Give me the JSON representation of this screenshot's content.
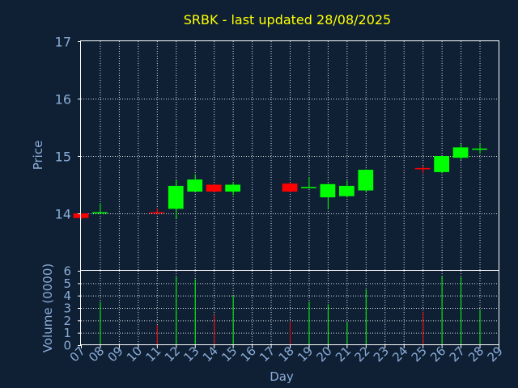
{
  "chart_data": {
    "type": "candlestick",
    "title": "SRBK - last updated 28/08/2025",
    "xlabel": "Day",
    "price_panel": {
      "ylabel": "Price",
      "ylim": [
        13.0,
        17.0
      ],
      "yticks": [
        "14",
        "15",
        "16",
        "17"
      ]
    },
    "volume_panel": {
      "ylabel": "Volume (0000)",
      "ylim": [
        0,
        6
      ],
      "yticks": [
        "0",
        "1",
        "2",
        "3",
        "4",
        "5",
        "6"
      ]
    },
    "x_tick_labels": [
      "07",
      "08",
      "09",
      "10",
      "11",
      "12",
      "13",
      "14",
      "15",
      "16",
      "17",
      "18",
      "19",
      "20",
      "21",
      "22",
      "23",
      "24",
      "25",
      "26",
      "27",
      "28",
      "29"
    ],
    "grid": true,
    "colors": {
      "up": "#00ff00",
      "down": "#ff0000",
      "background": "#0f2035",
      "text": "#8bacd6",
      "title": "#ffff00"
    },
    "candles": [
      {
        "day": "07",
        "open": 14.0,
        "high": 14.0,
        "low": 13.9,
        "close": 13.92,
        "volume": 0.0
      },
      {
        "day": "08",
        "open": 14.01,
        "high": 14.18,
        "low": 13.99,
        "close": 14.02,
        "volume": 3.5
      },
      {
        "day": "11",
        "open": 14.02,
        "high": 14.09,
        "low": 13.98,
        "close": 14.01,
        "volume": 1.6
      },
      {
        "day": "12",
        "open": 14.08,
        "high": 14.58,
        "low": 13.91,
        "close": 14.48,
        "volume": 5.5
      },
      {
        "day": "13",
        "open": 14.38,
        "high": 14.68,
        "low": 14.38,
        "close": 14.59,
        "volume": 5.3
      },
      {
        "day": "14",
        "open": 14.5,
        "high": 14.51,
        "low": 14.37,
        "close": 14.38,
        "volume": 2.4
      },
      {
        "day": "15",
        "open": 14.38,
        "high": 14.55,
        "low": 14.32,
        "close": 14.5,
        "volume": 4.0
      },
      {
        "day": "18",
        "open": 14.52,
        "high": 14.54,
        "low": 14.37,
        "close": 14.38,
        "volume": 1.9
      },
      {
        "day": "19",
        "open": 14.44,
        "high": 14.63,
        "low": 14.44,
        "close": 14.46,
        "volume": 3.5
      },
      {
        "day": "20",
        "open": 14.28,
        "high": 14.52,
        "low": 14.07,
        "close": 14.51,
        "volume": 3.3
      },
      {
        "day": "21",
        "open": 14.3,
        "high": 14.57,
        "low": 14.28,
        "close": 14.48,
        "volume": 1.9
      },
      {
        "day": "22",
        "open": 14.4,
        "high": 14.77,
        "low": 14.38,
        "close": 14.76,
        "volume": 4.5
      },
      {
        "day": "25",
        "open": 14.79,
        "high": 14.83,
        "low": 14.7,
        "close": 14.78,
        "volume": 2.7
      },
      {
        "day": "26",
        "open": 14.72,
        "high": 15.0,
        "low": 14.7,
        "close": 15.0,
        "volume": 5.6
      },
      {
        "day": "27",
        "open": 14.97,
        "high": 15.21,
        "low": 14.93,
        "close": 15.15,
        "volume": 5.5
      },
      {
        "day": "28",
        "open": 15.12,
        "high": 15.22,
        "low": 15.04,
        "close": 15.13,
        "volume": 2.9
      }
    ]
  }
}
